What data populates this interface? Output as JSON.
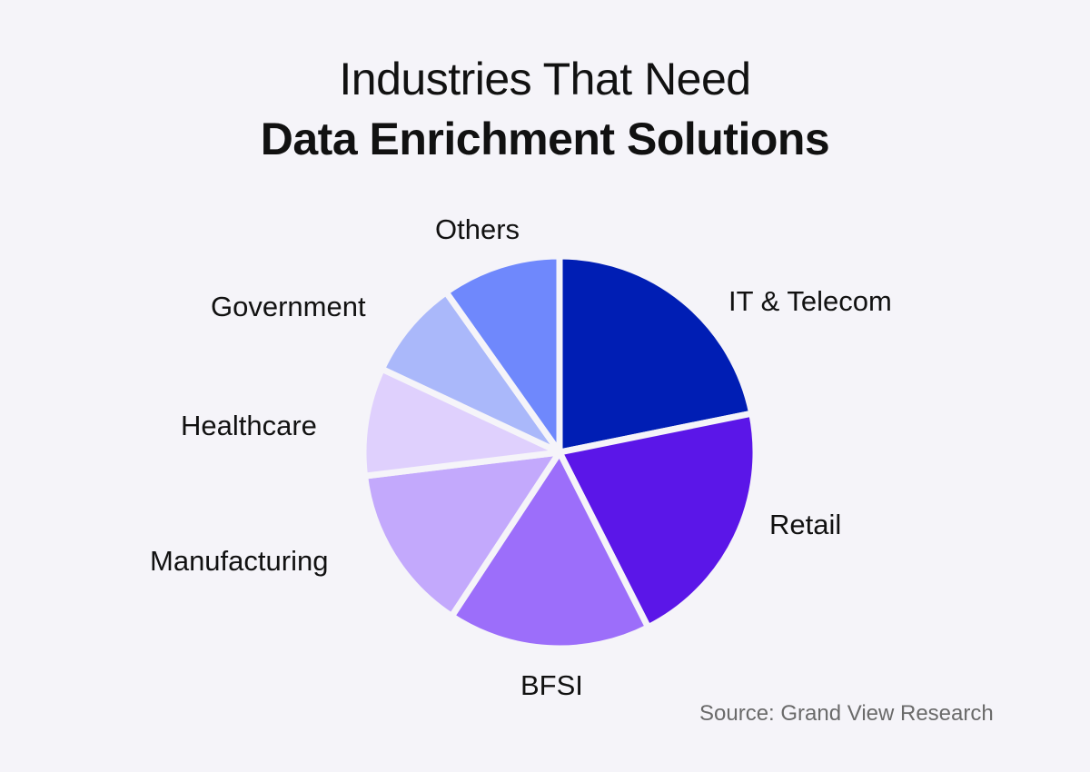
{
  "title": {
    "line1": "Industries That Need",
    "line2": "Data Enrichment Solutions"
  },
  "source": "Source:  Grand View Research",
  "chart_data": {
    "type": "pie",
    "title": "Industries That Need Data Enrichment Solutions",
    "categories": [
      "IT & Telecom",
      "Retail",
      "BFSI",
      "Manufacturing",
      "Healthcare",
      "Government",
      "Others"
    ],
    "values": [
      21.8,
      20.7,
      16.7,
      13.8,
      8.9,
      8.2,
      9.8
    ],
    "colors": [
      "#001eb4",
      "#5b16e8",
      "#9c6efa",
      "#c3a9fc",
      "#dfd0fd",
      "#aab8fa",
      "#6f88fc"
    ],
    "start_angle_deg": 0,
    "direction": "clockwise",
    "legend": "none (direct labels)",
    "source": "Grand View Research"
  }
}
